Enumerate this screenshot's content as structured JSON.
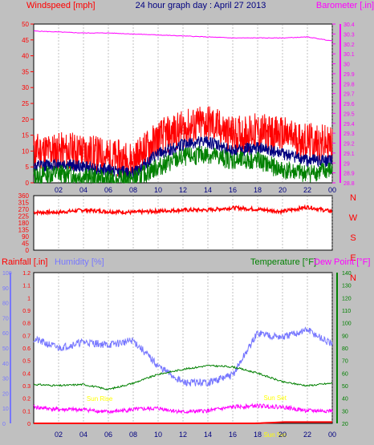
{
  "title": "24 hour graph day : April 27 2013",
  "colors": {
    "background": "#c0c0c0",
    "plot_bg": "#ffffff",
    "wind": "#ff0000",
    "wind_avg": "#000080",
    "wind_gust_low": "#008000",
    "pressure": "#ff00ff",
    "direction": "#ff0000",
    "rain": "#ff0000",
    "humidity": "#7777ff",
    "temperature": "#008000",
    "dewpoint": "#ff00ff",
    "sun_label": "#ffff00",
    "grid": "#808080"
  },
  "x_tick_labels": [
    "02",
    "04",
    "06",
    "08",
    "10",
    "12",
    "14",
    "16",
    "18",
    "20",
    "22",
    "00"
  ],
  "chart_data": [
    {
      "type": "line",
      "panel": "wind-pressure",
      "left_axis_label": "Windspeed [mph]",
      "right_axis_label": "Barometer [.in]",
      "left_ylim": [
        0,
        50
      ],
      "left_ticks": [
        "0",
        "5",
        "10",
        "15",
        "20",
        "25",
        "30",
        "35",
        "40",
        "45",
        "50"
      ],
      "right_ylim": [
        28.8,
        30.4
      ],
      "right_ticks": [
        "28.8",
        "28.9",
        "29",
        "29.1",
        "29.2",
        "29.3",
        "29.4",
        "29.5",
        "29.6",
        "29.7",
        "29.8",
        "29.9",
        "30",
        "30.1",
        "30.2",
        "30.3",
        "30.4"
      ],
      "x": [
        0,
        2,
        4,
        6,
        8,
        10,
        12,
        14,
        16,
        18,
        20,
        22,
        24
      ],
      "series": [
        {
          "color": "red",
          "values": [
            10,
            10,
            10,
            8,
            7,
            14,
            17,
            19,
            15,
            16,
            15,
            13,
            12
          ]
        },
        {
          "color": "navy",
          "values": [
            5,
            6,
            5,
            4,
            3,
            9,
            12,
            13,
            10,
            11,
            9,
            7,
            7
          ]
        },
        {
          "color": "green",
          "values": [
            2,
            3,
            2,
            1,
            1,
            5,
            8,
            9,
            7,
            7,
            4,
            3,
            4
          ]
        },
        {
          "color": "magenta",
          "values": [
            30.33,
            30.32,
            30.31,
            30.31,
            30.3,
            30.29,
            30.28,
            30.27,
            30.26,
            30.26,
            30.26,
            30.27,
            30.23
          ]
        }
      ]
    },
    {
      "type": "line",
      "panel": "direction",
      "left_ylim": [
        0,
        360
      ],
      "left_ticks": [
        "0",
        "45",
        "90",
        "135",
        "180",
        "225",
        "270",
        "315",
        "360"
      ],
      "right_labels": [
        "N",
        "W",
        "S",
        "E",
        "N"
      ],
      "x": [
        0,
        2,
        4,
        6,
        8,
        10,
        12,
        14,
        16,
        18,
        20,
        22,
        24
      ],
      "series": [
        {
          "color": "red",
          "values": [
            250,
            250,
            265,
            255,
            250,
            258,
            265,
            265,
            280,
            270,
            255,
            285,
            255
          ]
        }
      ]
    },
    {
      "type": "line",
      "panel": "rain-humidity-temperature",
      "rain_label": "Rainfall [.in]",
      "humidity_label": "Humidity [%]",
      "temperature_label": "Temperature [°F]",
      "dewpoint_label": "Dew Point [°F]",
      "rain_ylim": [
        0,
        1.2
      ],
      "rain_ticks": [
        "0",
        "0.1",
        "0.2",
        "0.3",
        "0.4",
        "0.5",
        "0.6",
        "0.7",
        "0.8",
        "0.9",
        "1",
        "1.1",
        "1.2"
      ],
      "humidity_ylim": [
        0,
        100
      ],
      "humidity_ticks": [
        "0",
        "10",
        "20",
        "30",
        "40",
        "50",
        "60",
        "70",
        "80",
        "90",
        "100"
      ],
      "temperature_ylim": [
        20,
        140
      ],
      "temperature_ticks": [
        "20",
        "30",
        "40",
        "50",
        "60",
        "70",
        "80",
        "90",
        "100",
        "110",
        "120",
        "130",
        "140"
      ],
      "x": [
        0,
        2,
        4,
        6,
        8,
        10,
        12,
        14,
        16,
        18,
        20,
        22,
        24
      ],
      "series": [
        {
          "color": "humidity",
          "values": [
            56,
            50,
            54,
            52,
            55,
            38,
            27,
            27,
            32,
            60,
            57,
            62,
            52
          ]
        },
        {
          "color": "temperature",
          "values": [
            51,
            50,
            51,
            47,
            52,
            59,
            63,
            66,
            65,
            60,
            53,
            50,
            52
          ]
        },
        {
          "color": "dewpoint",
          "values": [
            33,
            31,
            31,
            29,
            31,
            32,
            29,
            30,
            33,
            34,
            33,
            30,
            30
          ]
        },
        {
          "color": "rain",
          "values": [
            0,
            0,
            0,
            0,
            0,
            0,
            0,
            0,
            0,
            0,
            0.01,
            0.01,
            0.01
          ]
        }
      ],
      "annotations": [
        "Sun Rise",
        "Sun Set",
        "Sun Set"
      ]
    }
  ]
}
